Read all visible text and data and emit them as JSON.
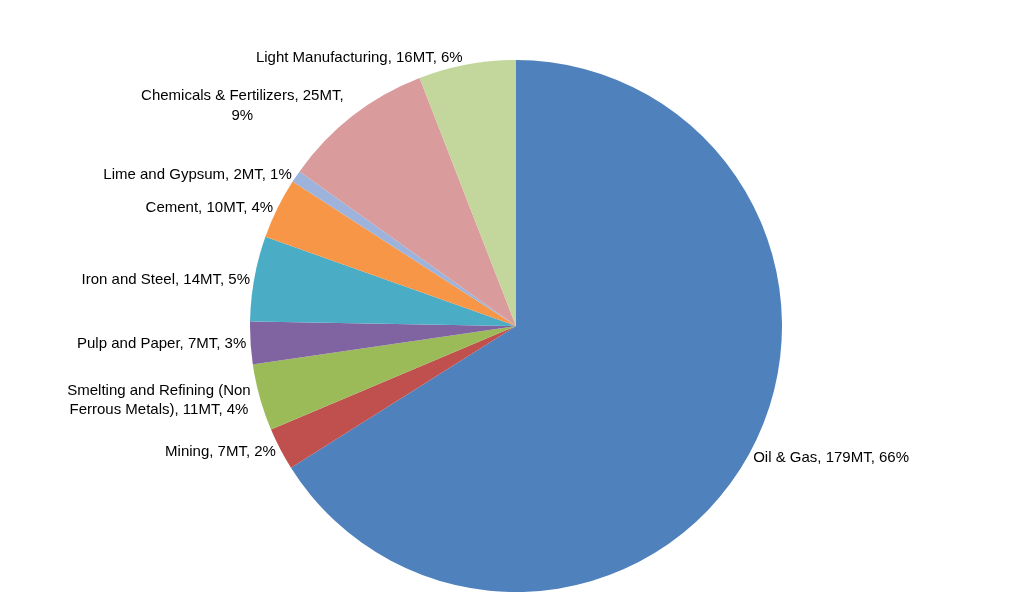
{
  "chart_data": {
    "type": "pie",
    "categories": [
      "Oil & Gas",
      "Mining",
      "Smelting and Refining (Non Ferrous Metals)",
      "Pulp and Paper",
      "Iron and Steel",
      "Cement",
      "Lime and Gypsum",
      "Chemicals & Fertilizers",
      "Light Manufacturing"
    ],
    "values": [
      179,
      7,
      11,
      7,
      14,
      10,
      2,
      25,
      16
    ],
    "value_labels": [
      "179MT, 66%",
      "7MT, 2%",
      "11MT, 4%",
      "7MT, 3%",
      "14MT, 5%",
      "10MT, 4%",
      "2MT, 1%",
      "25MT, 9%",
      "16MT, 6%"
    ],
    "colors": [
      "#4f81bd",
      "#c0504d",
      "#9bbb59",
      "#8064a2",
      "#4bacc6",
      "#f79646",
      "#9db3dc",
      "#d99b9b",
      "#c3d69b"
    ],
    "legend": false
  }
}
